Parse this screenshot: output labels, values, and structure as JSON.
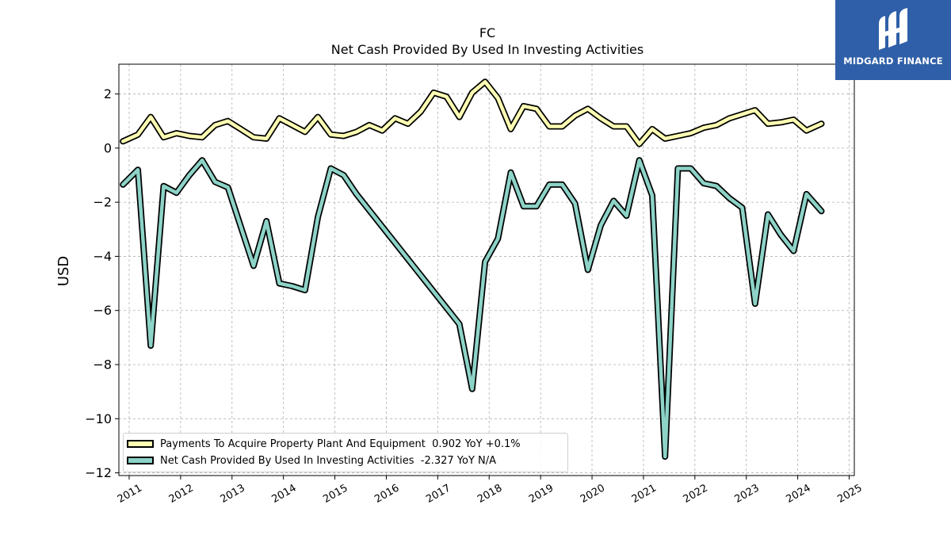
{
  "brand": {
    "name": "MIDGARD FINANCE",
    "icon": "midgard-logo-icon",
    "color": "#2f5fa8"
  },
  "chart_data": {
    "type": "line",
    "title": "FC",
    "subtitle": "Net Cash Provided By Used In Investing Activities",
    "ylabel": "USD",
    "xlabel": "",
    "ylim": [
      -12.1,
      3.1
    ],
    "xlim": [
      2010.8,
      2025.1
    ],
    "yticks": [
      2,
      0,
      -2,
      -4,
      -6,
      -8,
      -10,
      -12
    ],
    "ytick_labels": [
      "2",
      "0",
      "−2",
      "−4",
      "−6",
      "−8",
      "−10",
      "−12"
    ],
    "xticks": [
      2011,
      2012,
      2013,
      2014,
      2015,
      2016,
      2017,
      2018,
      2019,
      2020,
      2021,
      2022,
      2023,
      2024,
      2025
    ],
    "xtick_labels": [
      "2011",
      "2012",
      "2013",
      "2014",
      "2015",
      "2016",
      "2017",
      "2018",
      "2019",
      "2020",
      "2021",
      "2022",
      "2023",
      "2024",
      "2025"
    ],
    "grid": true,
    "legend_position": "lower-left",
    "series": [
      {
        "name": "Payments To Acquire Property Plant And Equipment",
        "legend_label": "Payments To Acquire Property Plant And Equipment  0.902 YoY +0.1%",
        "color": "#ffffb3",
        "x": [
          2010.88,
          2011.17,
          2011.42,
          2011.67,
          2011.92,
          2012.17,
          2012.42,
          2012.67,
          2012.92,
          2013.17,
          2013.42,
          2013.67,
          2013.92,
          2014.17,
          2014.42,
          2014.67,
          2014.92,
          2015.17,
          2015.42,
          2015.67,
          2015.92,
          2016.17,
          2016.42,
          2016.67,
          2016.92,
          2017.17,
          2017.42,
          2017.67,
          2017.92,
          2018.17,
          2018.42,
          2018.67,
          2018.92,
          2019.17,
          2019.42,
          2019.67,
          2019.92,
          2020.17,
          2020.42,
          2020.67,
          2020.92,
          2021.17,
          2021.42,
          2021.67,
          2021.92,
          2022.17,
          2022.42,
          2022.67,
          2022.92,
          2023.17,
          2023.42,
          2023.67,
          2023.92,
          2024.17,
          2024.46
        ],
        "values": [
          0.25,
          0.5,
          1.15,
          0.4,
          0.55,
          0.45,
          0.4,
          0.85,
          1.0,
          0.7,
          0.4,
          0.35,
          1.1,
          0.85,
          0.6,
          1.15,
          0.5,
          0.45,
          0.6,
          0.85,
          0.65,
          1.1,
          0.9,
          1.35,
          2.05,
          1.9,
          1.15,
          2.05,
          2.45,
          1.85,
          0.7,
          1.55,
          1.45,
          0.8,
          0.8,
          1.2,
          1.45,
          1.1,
          0.8,
          0.8,
          0.15,
          0.7,
          0.35,
          0.45,
          0.55,
          0.75,
          0.85,
          1.1,
          1.25,
          1.4,
          0.9,
          0.95,
          1.05,
          0.65,
          0.9
        ]
      },
      {
        "name": "Net Cash Provided By Used In Investing Activities",
        "legend_label": "Net Cash Provided By Used In Investing Activities  -2.327 YoY N/A",
        "color": "#8dd3c7",
        "x": [
          2010.88,
          2011.17,
          2011.42,
          2011.67,
          2011.92,
          2012.17,
          2012.42,
          2012.67,
          2012.92,
          2013.17,
          2013.42,
          2013.67,
          2013.92,
          2014.17,
          2014.42,
          2014.67,
          2014.92,
          2015.17,
          2015.42,
          2017.42,
          2017.67,
          2017.92,
          2018.17,
          2018.42,
          2018.67,
          2018.92,
          2019.17,
          2019.42,
          2019.67,
          2019.92,
          2020.17,
          2020.42,
          2020.67,
          2020.92,
          2021.17,
          2021.42,
          2021.67,
          2021.92,
          2022.17,
          2022.42,
          2022.67,
          2022.92,
          2023.17,
          2023.42,
          2023.67,
          2023.92,
          2024.17,
          2024.46
        ],
        "values": [
          -1.35,
          -0.8,
          -7.3,
          -1.4,
          -1.65,
          -1.0,
          -0.45,
          -1.25,
          -1.45,
          -2.9,
          -4.35,
          -2.7,
          -5.0,
          -5.1,
          -5.25,
          -2.55,
          -0.75,
          -1.0,
          -1.7,
          -6.5,
          -8.9,
          -4.2,
          -3.35,
          -0.9,
          -2.15,
          -2.15,
          -1.35,
          -1.35,
          -2.05,
          -4.5,
          -2.85,
          -1.95,
          -2.5,
          -0.45,
          -1.75,
          -11.4,
          -0.75,
          -0.75,
          -1.3,
          -1.4,
          -1.85,
          -2.2,
          -5.75,
          -2.45,
          -3.2,
          -3.8,
          -1.7,
          -2.33
        ]
      }
    ]
  }
}
